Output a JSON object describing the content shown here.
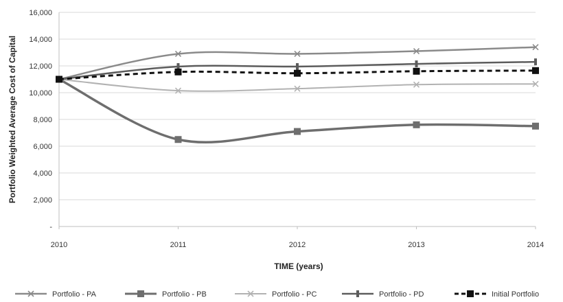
{
  "chart_data": {
    "type": "line",
    "title": "",
    "xlabel": "TIME (years)",
    "ylabel": "Portfolio Weighted Average Cost of Capital",
    "x": [
      2010,
      2011,
      2012,
      2013,
      2014
    ],
    "x_tick_labels": [
      "2010",
      "2011",
      "2012",
      "2013",
      "2014"
    ],
    "ylim": [
      0,
      16000
    ],
    "y_ticks": [
      0,
      2000,
      4000,
      6000,
      8000,
      10000,
      12000,
      14000,
      16000
    ],
    "y_tick_labels": [
      "-",
      "2,000",
      "4,000",
      "6,000",
      "8,000",
      "10,000",
      "12,000",
      "14,000",
      "16,000"
    ],
    "grid": "horizontal",
    "legend_position": "bottom",
    "series": [
      {
        "name": "Portfolio - PA",
        "values": [
          11000,
          12900,
          12900,
          13100,
          13400
        ],
        "color": "#8a8a8a",
        "marker": "cross",
        "dash": "solid",
        "width": 2.5
      },
      {
        "name": "Portfolio - PB",
        "values": [
          11000,
          6500,
          7100,
          7600,
          7500
        ],
        "color": "#6e6e6e",
        "marker": "square",
        "dash": "solid",
        "width": 3.5
      },
      {
        "name": "Portfolio - PC",
        "values": [
          11000,
          10150,
          10300,
          10600,
          10650
        ],
        "color": "#b2b2b2",
        "marker": "cross",
        "dash": "solid",
        "width": 2
      },
      {
        "name": "Portfolio - PD",
        "values": [
          11000,
          11950,
          11950,
          12150,
          12300
        ],
        "color": "#5c5c5c",
        "marker": "dash",
        "dash": "solid",
        "width": 2.5
      },
      {
        "name": "Initial Portfolio",
        "values": [
          11000,
          11550,
          11450,
          11600,
          11650
        ],
        "color": "#111111",
        "marker": "square",
        "dash": "dashed",
        "width": 3
      }
    ]
  }
}
